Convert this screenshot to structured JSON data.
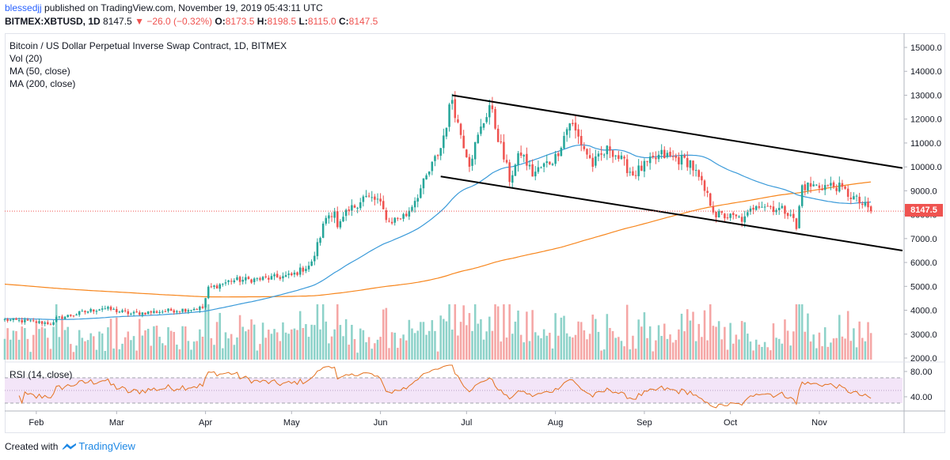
{
  "header": {
    "user": "blessedjj",
    "published": "published on TradingView.com, November 19, 2019 05:43:11 UTC",
    "symbol": "BITMEX:XBTUSD, 1D",
    "last": "8147.5",
    "change_arrow": "▼",
    "change": "−26.0 (−0.32%)",
    "o_label": "O:",
    "o": "8173.5",
    "h_label": "H:",
    "h": "8198.5",
    "l_label": "L:",
    "l": "8115.0",
    "c_label": "C:",
    "c": "8147.5"
  },
  "legend": {
    "instrument": "Bitcoin / US Dollar Perpetual Inverse Swap Contract, 1D, BITMEX",
    "vol": "Vol (20)",
    "ma50": "MA (50, close)",
    "ma200": "MA (200, close)",
    "rsi": "RSI (14, close)"
  },
  "footer": {
    "created_with": "Created with",
    "brand": "TradingView"
  },
  "colors": {
    "up": "#26a69a",
    "down": "#ef5350",
    "vol_up": "#8dd2c9",
    "vol_down": "#f5a6a5",
    "ma50": "#3a9ad9",
    "ma200": "#f7861d",
    "rsi": "#e4711e",
    "rsi_band": "#f3e5f8",
    "price_line": "#ef5350",
    "channel": "#000000"
  },
  "chart_data": {
    "type": "candlestick",
    "price_axis": {
      "min": 2000,
      "max": 15000,
      "ticks": [
        "15000.0",
        "14000.0",
        "13000.0",
        "12000.0",
        "11000.0",
        "10000.0",
        "9000.0",
        "8000.0",
        "7000.0",
        "6000.0",
        "5000.0",
        "4000.0",
        "3000.0",
        "2000.0"
      ]
    },
    "rsi_axis": {
      "ticks": [
        "80.00",
        "40.00"
      ],
      "band": [
        30,
        70
      ]
    },
    "months": [
      "Feb",
      "Mar",
      "Apr",
      "May",
      "Jun",
      "Jul",
      "Aug",
      "Sep",
      "Oct",
      "Nov"
    ],
    "last_price_label": "8147.5",
    "anchors": [
      [
        "2019-01-21",
        3600
      ],
      [
        "2019-02-07",
        3450
      ],
      [
        "2019-02-08",
        3650
      ],
      [
        "2019-02-24",
        4100
      ],
      [
        "2019-03-06",
        3850
      ],
      [
        "2019-03-31",
        4100
      ],
      [
        "2019-04-02",
        4900
      ],
      [
        "2019-04-10",
        5250
      ],
      [
        "2019-04-20",
        5300
      ],
      [
        "2019-05-01",
        5450
      ],
      [
        "2019-05-08",
        5950
      ],
      [
        "2019-05-13",
        7900
      ],
      [
        "2019-05-16",
        8200
      ],
      [
        "2019-05-17",
        7400
      ],
      [
        "2019-05-20",
        8000
      ],
      [
        "2019-05-26",
        8750
      ],
      [
        "2019-05-31",
        8600
      ],
      [
        "2019-06-04",
        7700
      ],
      [
        "2019-06-10",
        8000
      ],
      [
        "2019-06-16",
        9300
      ],
      [
        "2019-06-22",
        10800
      ],
      [
        "2019-06-26",
        12900
      ],
      [
        "2019-06-28",
        11800
      ],
      [
        "2019-07-02",
        10200
      ],
      [
        "2019-07-09",
        12600
      ],
      [
        "2019-07-16",
        9500
      ],
      [
        "2019-07-20",
        10600
      ],
      [
        "2019-07-24",
        9700
      ],
      [
        "2019-08-01",
        10400
      ],
      [
        "2019-08-06",
        11900
      ],
      [
        "2019-08-14",
        10100
      ],
      [
        "2019-08-20",
        10800
      ],
      [
        "2019-08-28",
        9700
      ],
      [
        "2019-09-07",
        10500
      ],
      [
        "2019-09-17",
        10200
      ],
      [
        "2019-09-24",
        8500
      ],
      [
        "2019-09-26",
        8000
      ],
      [
        "2019-10-06",
        7800
      ],
      [
        "2019-10-10",
        8500
      ],
      [
        "2019-10-22",
        8100
      ],
      [
        "2019-10-24",
        7400
      ],
      [
        "2019-10-26",
        9200
      ],
      [
        "2019-11-01",
        9200
      ],
      [
        "2019-11-07",
        9200
      ],
      [
        "2019-11-13",
        8700
      ],
      [
        "2019-11-19",
        8147.5
      ]
    ],
    "channel_upper": [
      [
        "2019-06-26",
        13000
      ],
      [
        "2019-11-30",
        9950
      ]
    ],
    "channel_lower": [
      [
        "2019-06-22",
        9600
      ],
      [
        "2019-11-30",
        6500
      ]
    ]
  }
}
